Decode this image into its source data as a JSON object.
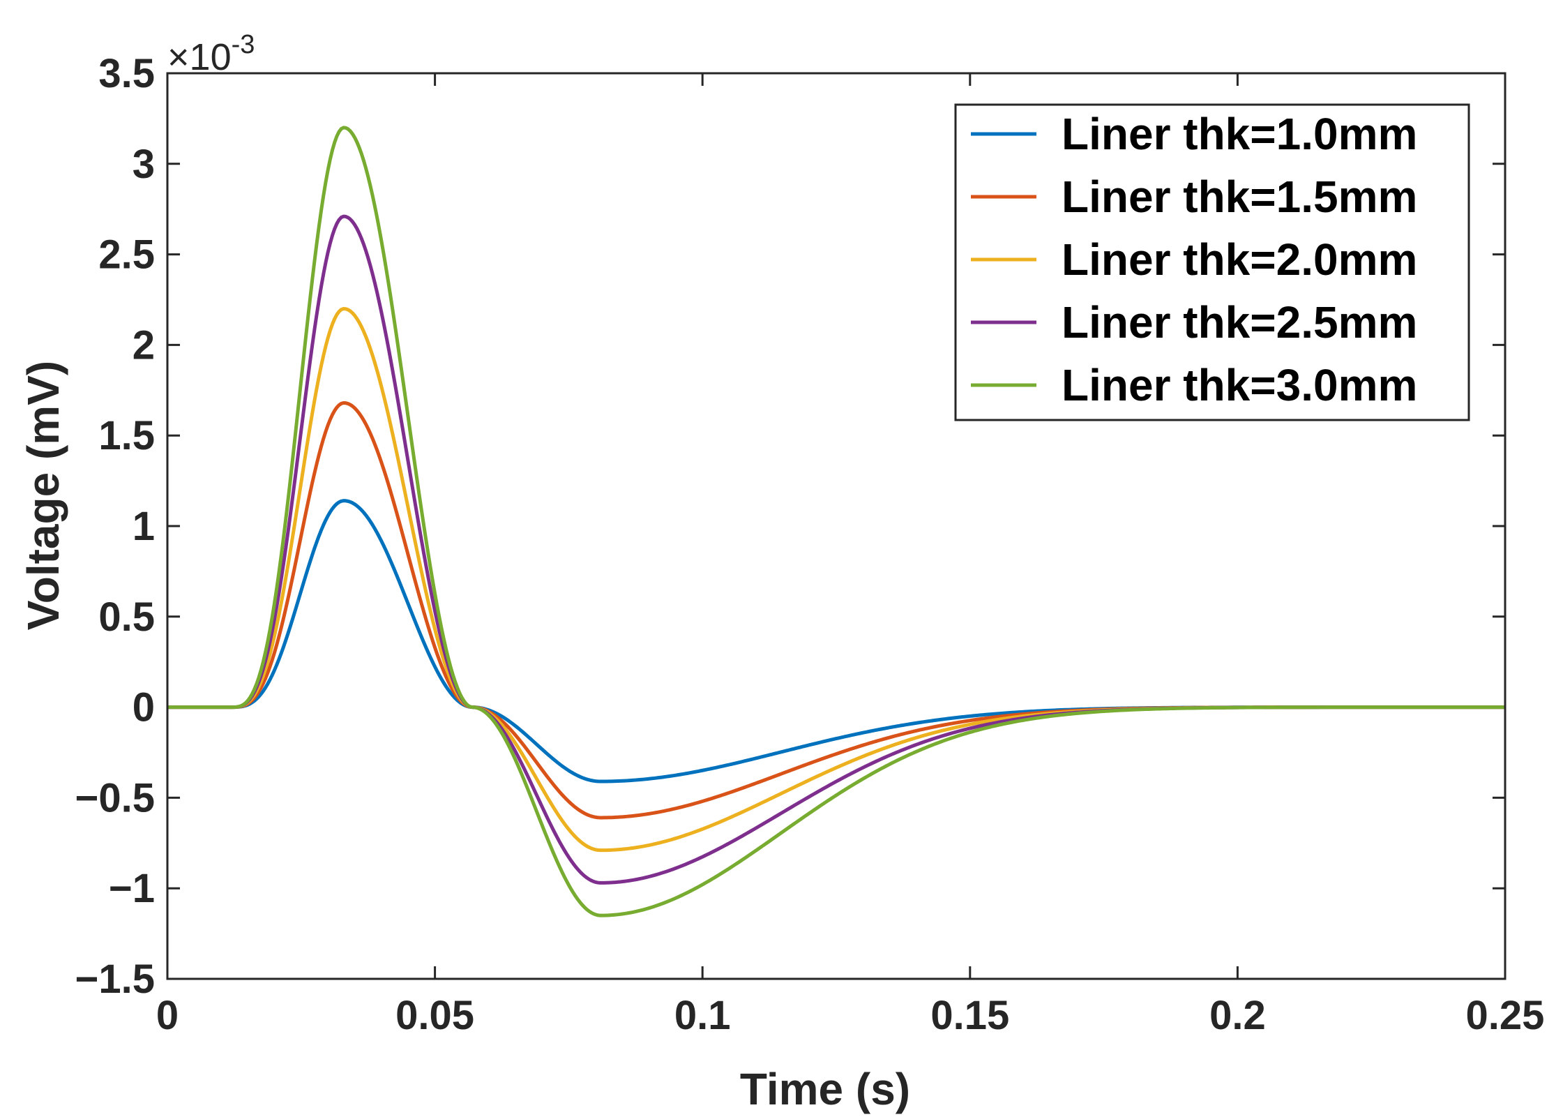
{
  "chart_data": {
    "type": "line",
    "title": "",
    "xlabel": "Time (s)",
    "ylabel": "Voltage (mV)",
    "xlim": [
      0,
      0.25
    ],
    "ylim": [
      -1.5,
      3.5
    ],
    "y_exponent": {
      "base": "10",
      "power": "-3",
      "prefix": "×"
    },
    "x_ticks": [
      0,
      0.05,
      0.1,
      0.15,
      0.2,
      0.25
    ],
    "x_tick_labels": [
      "0",
      "0.05",
      "0.1",
      "0.15",
      "0.2",
      "0.25"
    ],
    "y_ticks": [
      -1.5,
      -1,
      -0.5,
      0,
      0.5,
      1,
      1.5,
      2,
      2.5,
      3,
      3.5
    ],
    "y_tick_labels": [
      "−1.5",
      "−1",
      "−0.5",
      "0",
      "0.5",
      "1",
      "1.5",
      "2",
      "2.5",
      "3",
      "3.5"
    ],
    "grid": false,
    "legend_position": "top-right",
    "shape": {
      "onset": 0.012,
      "zero_crossing": 0.057,
      "peak_time": 0.033,
      "trough_time": 0.081,
      "end": 0.25
    },
    "series": [
      {
        "name": "Liner thk=1.0mm",
        "color": "#0072BD",
        "peak": 1.14,
        "trough": -0.41
      },
      {
        "name": "Liner thk=1.5mm",
        "color": "#D95319",
        "peak": 1.68,
        "trough": -0.61
      },
      {
        "name": "Liner thk=2.0mm",
        "color": "#EDB120",
        "peak": 2.2,
        "trough": -0.79
      },
      {
        "name": "Liner thk=2.5mm",
        "color": "#7E2F8E",
        "peak": 2.71,
        "trough": -0.97
      },
      {
        "name": "Liner thk=3.0mm",
        "color": "#77AC30",
        "peak": 3.2,
        "trough": -1.15
      }
    ]
  }
}
